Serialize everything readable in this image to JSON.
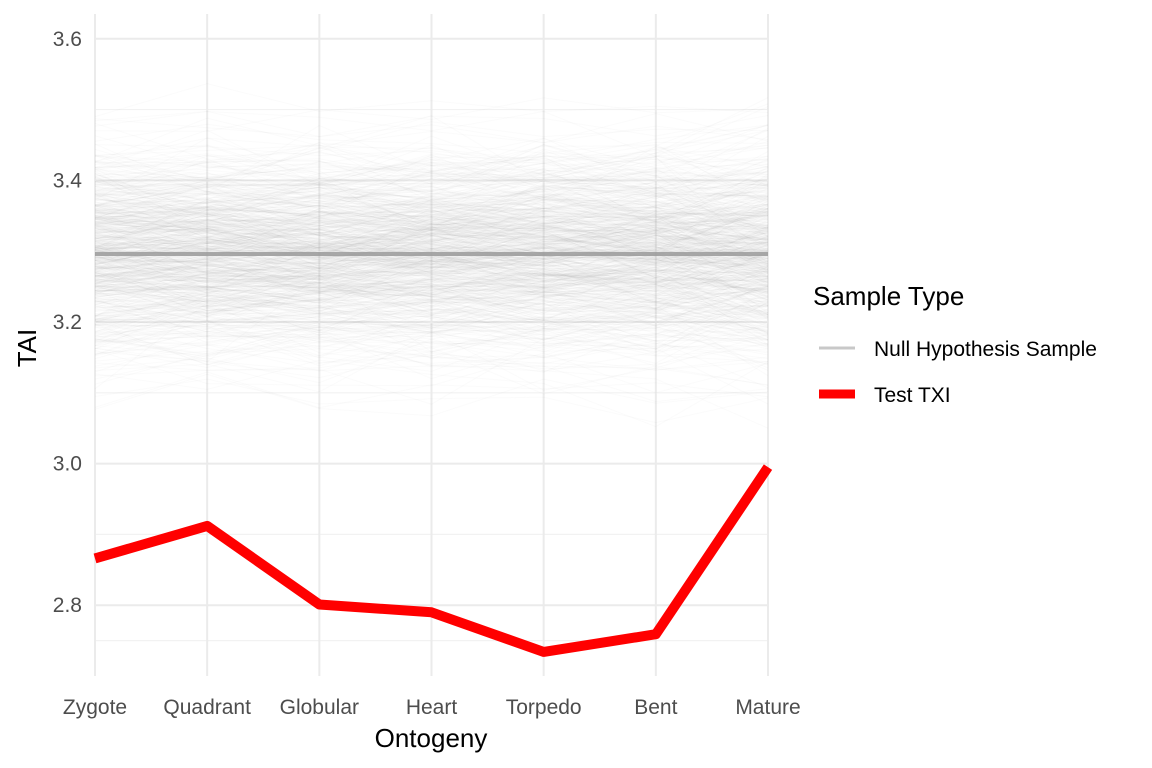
{
  "chart_data": {
    "type": "line",
    "title": "",
    "xlabel": "Ontogeny",
    "ylabel": "TAI",
    "categories": [
      "Zygote",
      "Quadrant",
      "Globular",
      "Heart",
      "Torpedo",
      "Bent",
      "Mature"
    ],
    "ylim": [
      2.7,
      3.635
    ],
    "yticks": [
      "2.8",
      "3.0",
      "3.2",
      "3.4",
      "3.6"
    ],
    "ytick_values": [
      2.8,
      3.0,
      3.2,
      3.4,
      3.6
    ],
    "grid": true,
    "legend": {
      "title": "Sample Type",
      "placement": "right",
      "entries": [
        {
          "label": "Null Hypothesis Sample",
          "color": "#c8c8c8"
        },
        {
          "label": "Test TXI",
          "color": "#ff0000"
        }
      ]
    },
    "series": [
      {
        "name": "Test TXI",
        "color": "#ff0000",
        "values": [
          2.866,
          2.912,
          2.801,
          2.79,
          2.734,
          2.759,
          2.995
        ]
      },
      {
        "name": "Null Hypothesis Sample",
        "color": "#9e9e9e",
        "mean": 3.296,
        "sd": 0.07,
        "range": [
          3.05,
          3.6
        ]
      }
    ]
  }
}
